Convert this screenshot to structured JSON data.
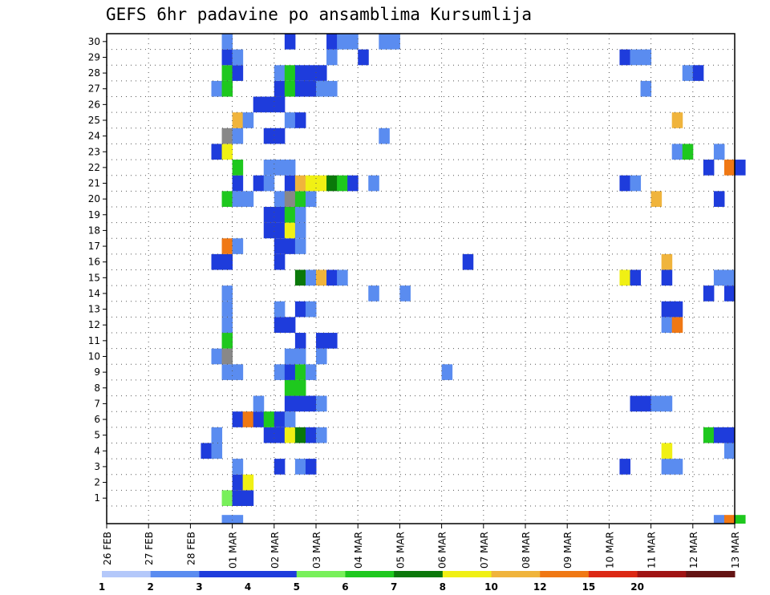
{
  "title": "GEFS 6hr padavine po ansamblima Kursumlija",
  "chart_data": {
    "type": "heatmap",
    "title": "GEFS 6hr padavine po ansamblima Kursumlija",
    "xlabel": "",
    "ylabel": "",
    "grid": true,
    "x_ticks": [
      "26 FEB",
      "27 FEB",
      "28 FEB",
      "01 MAR",
      "02 MAR",
      "03 MAR",
      "04 MAR",
      "05 MAR",
      "06 MAR",
      "07 MAR",
      "08 MAR",
      "09 MAR",
      "10 MAR",
      "11 MAR",
      "12 MAR",
      "13 MAR"
    ],
    "y_ticks": [
      1,
      2,
      3,
      4,
      5,
      6,
      7,
      8,
      9,
      10,
      11,
      12,
      13,
      14,
      15,
      16,
      17,
      18,
      19,
      20,
      21,
      22,
      23,
      24,
      25,
      26,
      27,
      28,
      29,
      30
    ],
    "step_hours": 6,
    "x_start": "26 FEB 00Z",
    "colorbar": {
      "labels": [
        "1",
        "2",
        "3",
        "4",
        "5",
        "6",
        "7",
        "8",
        "10",
        "12",
        "15",
        "20"
      ],
      "colors": [
        "#b4c8fa",
        "#5a8cf0",
        "#1e3cdc",
        "#1e3cdc",
        "#78f05a",
        "#1ec81e",
        "#0a780a",
        "#f0f014",
        "#f0b43c",
        "#f07814",
        "#dc2814",
        "#a01414",
        "#641414"
      ]
    },
    "cells": [
      [
        1,
        11,
        4
      ],
      [
        1,
        12,
        3
      ],
      [
        1,
        13,
        2
      ],
      [
        2,
        12,
        3
      ],
      [
        2,
        13,
        7
      ],
      [
        3,
        12,
        1
      ],
      [
        3,
        16,
        2
      ],
      [
        3,
        18,
        1
      ],
      [
        3,
        19,
        3
      ],
      [
        3,
        49,
        2
      ],
      [
        3,
        53,
        1
      ],
      [
        3,
        54,
        1
      ],
      [
        4,
        9,
        2
      ],
      [
        4,
        10,
        1
      ],
      [
        4,
        53,
        7
      ],
      [
        4,
        59,
        1
      ],
      [
        5,
        10,
        1
      ],
      [
        5,
        15,
        2
      ],
      [
        5,
        16,
        3
      ],
      [
        5,
        17,
        7
      ],
      [
        5,
        18,
        6
      ],
      [
        5,
        19,
        2
      ],
      [
        5,
        20,
        1
      ],
      [
        5,
        57,
        5
      ],
      [
        5,
        58,
        3
      ],
      [
        5,
        59,
        3
      ],
      [
        6,
        12,
        2
      ],
      [
        6,
        13,
        9
      ],
      [
        6,
        14,
        3
      ],
      [
        6,
        15,
        5
      ],
      [
        6,
        16,
        3
      ],
      [
        6,
        17,
        1
      ],
      [
        7,
        14,
        1
      ],
      [
        7,
        17,
        2
      ],
      [
        7,
        18,
        2
      ],
      [
        7,
        19,
        3
      ],
      [
        7,
        20,
        1
      ],
      [
        7,
        50,
        3
      ],
      [
        7,
        51,
        2
      ],
      [
        7,
        52,
        1
      ],
      [
        7,
        53,
        1
      ],
      [
        8,
        17,
        5
      ],
      [
        8,
        18,
        5
      ],
      [
        9,
        11,
        1
      ],
      [
        9,
        12,
        1
      ],
      [
        9,
        16,
        1
      ],
      [
        9,
        17,
        3
      ],
      [
        9,
        18,
        5
      ],
      [
        9,
        19,
        1
      ],
      [
        9,
        32,
        1
      ],
      [
        10,
        10,
        1
      ],
      [
        10,
        11,
        13
      ],
      [
        10,
        17,
        1
      ],
      [
        10,
        18,
        1
      ],
      [
        10,
        20,
        1
      ],
      [
        11,
        11,
        5
      ],
      [
        11,
        18,
        2
      ],
      [
        11,
        20,
        2
      ],
      [
        11,
        21,
        2
      ],
      [
        12,
        11,
        1
      ],
      [
        12,
        16,
        2
      ],
      [
        12,
        17,
        3
      ],
      [
        12,
        53,
        1
      ],
      [
        12,
        54,
        9
      ],
      [
        13,
        11,
        1
      ],
      [
        13,
        16,
        1
      ],
      [
        13,
        18,
        2
      ],
      [
        13,
        19,
        1
      ],
      [
        13,
        53,
        2
      ],
      [
        13,
        54,
        2
      ],
      [
        14,
        11,
        1
      ],
      [
        14,
        25,
        1
      ],
      [
        14,
        28,
        1
      ],
      [
        14,
        57,
        2
      ],
      [
        14,
        59,
        3
      ],
      [
        15,
        18,
        6
      ],
      [
        15,
        19,
        1
      ],
      [
        15,
        20,
        8
      ],
      [
        15,
        21,
        3
      ],
      [
        15,
        22,
        1
      ],
      [
        15,
        49,
        7
      ],
      [
        15,
        50,
        3
      ],
      [
        15,
        53,
        2
      ],
      [
        15,
        58,
        1
      ],
      [
        15,
        59,
        1
      ],
      [
        16,
        10,
        3
      ],
      [
        16,
        11,
        2
      ],
      [
        16,
        16,
        2
      ],
      [
        16,
        34,
        2
      ],
      [
        16,
        53,
        8
      ],
      [
        17,
        11,
        9
      ],
      [
        17,
        12,
        1
      ],
      [
        17,
        16,
        2
      ],
      [
        17,
        17,
        3
      ],
      [
        17,
        18,
        1
      ],
      [
        18,
        15,
        3
      ],
      [
        18,
        16,
        3
      ],
      [
        18,
        17,
        7
      ],
      [
        18,
        18,
        1
      ],
      [
        19,
        15,
        3
      ],
      [
        19,
        16,
        2
      ],
      [
        19,
        17,
        5
      ],
      [
        19,
        18,
        1
      ],
      [
        20,
        11,
        5
      ],
      [
        20,
        12,
        1
      ],
      [
        20,
        13,
        1
      ],
      [
        20,
        16,
        1
      ],
      [
        20,
        17,
        13
      ],
      [
        20,
        18,
        5
      ],
      [
        20,
        19,
        1
      ],
      [
        20,
        52,
        8
      ],
      [
        20,
        58,
        2
      ],
      [
        21,
        12,
        2
      ],
      [
        21,
        14,
        2
      ],
      [
        21,
        15,
        1
      ],
      [
        21,
        17,
        3
      ],
      [
        21,
        18,
        8
      ],
      [
        21,
        19,
        7
      ],
      [
        21,
        20,
        7
      ],
      [
        21,
        21,
        6
      ],
      [
        21,
        22,
        5
      ],
      [
        21,
        23,
        2
      ],
      [
        21,
        25,
        1
      ],
      [
        21,
        49,
        2
      ],
      [
        21,
        50,
        1
      ],
      [
        22,
        12,
        5
      ],
      [
        22,
        15,
        1
      ],
      [
        22,
        16,
        1
      ],
      [
        22,
        17,
        1
      ],
      [
        22,
        57,
        3
      ],
      [
        22,
        59,
        9
      ],
      [
        22,
        60,
        3
      ],
      [
        23,
        10,
        2
      ],
      [
        23,
        11,
        7
      ],
      [
        23,
        54,
        1
      ],
      [
        23,
        55,
        5
      ],
      [
        23,
        58,
        1
      ],
      [
        24,
        11,
        13
      ],
      [
        24,
        12,
        1
      ],
      [
        24,
        15,
        2
      ],
      [
        24,
        16,
        2
      ],
      [
        24,
        26,
        1
      ],
      [
        25,
        12,
        8
      ],
      [
        25,
        13,
        1
      ],
      [
        25,
        17,
        1
      ],
      [
        25,
        18,
        2
      ],
      [
        25,
        54,
        8
      ],
      [
        26,
        14,
        2
      ],
      [
        26,
        15,
        3
      ],
      [
        26,
        16,
        3
      ],
      [
        27,
        10,
        1
      ],
      [
        27,
        11,
        5
      ],
      [
        27,
        16,
        2
      ],
      [
        27,
        17,
        5
      ],
      [
        27,
        18,
        3
      ],
      [
        27,
        19,
        2
      ],
      [
        27,
        20,
        1
      ],
      [
        27,
        21,
        1
      ],
      [
        27,
        51,
        1
      ],
      [
        28,
        11,
        5
      ],
      [
        28,
        12,
        3
      ],
      [
        28,
        16,
        1
      ],
      [
        28,
        17,
        5
      ],
      [
        28,
        18,
        2
      ],
      [
        28,
        19,
        2
      ],
      [
        28,
        20,
        2
      ],
      [
        28,
        55,
        1
      ],
      [
        28,
        56,
        2
      ],
      [
        29,
        11,
        3
      ],
      [
        29,
        12,
        1
      ],
      [
        29,
        21,
        1
      ],
      [
        29,
        24,
        2
      ],
      [
        29,
        49,
        2
      ],
      [
        29,
        50,
        1
      ],
      [
        29,
        51,
        1
      ],
      [
        30,
        11,
        1
      ],
      [
        30,
        17,
        2
      ],
      [
        30,
        21,
        2
      ],
      [
        30,
        22,
        1
      ],
      [
        30,
        23,
        1
      ],
      [
        30,
        26,
        1
      ],
      [
        30,
        27,
        1
      ],
      [
        0,
        11,
        1
      ],
      [
        0,
        12,
        1
      ],
      [
        0,
        58,
        1
      ],
      [
        0,
        59,
        9
      ],
      [
        0,
        60,
        5
      ]
    ]
  }
}
